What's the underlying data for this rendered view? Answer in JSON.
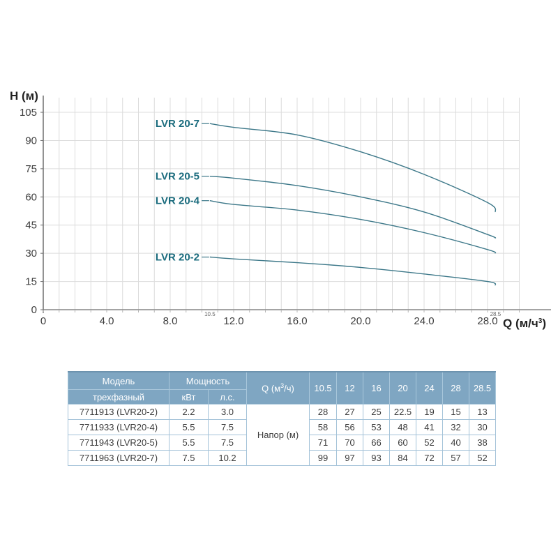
{
  "chart": {
    "y_axis_label": "H (м)",
    "x_axis_label_prefix": "Q (м/ч",
    "x_axis_label_sup": "3",
    "x_axis_label_suffix": ")",
    "x_ticks": [
      {
        "label": "0",
        "value": 0
      },
      {
        "label": "4.0",
        "value": 4
      },
      {
        "label": "8.0",
        "value": 8
      },
      {
        "label": "12.0",
        "value": 12
      },
      {
        "label": "16.0",
        "value": 16
      },
      {
        "label": "20.0",
        "value": 20
      },
      {
        "label": "24.0",
        "value": 24
      },
      {
        "label": "28.0",
        "value": 28
      }
    ],
    "y_ticks": [
      {
        "label": "0",
        "value": 0
      },
      {
        "label": "15",
        "value": 15
      },
      {
        "label": "30",
        "value": 30
      },
      {
        "label": "45",
        "value": 45
      },
      {
        "label": "60",
        "value": 60
      },
      {
        "label": "75",
        "value": 75
      },
      {
        "label": "90",
        "value": 90
      },
      {
        "label": "105",
        "value": 105
      }
    ],
    "range_markers": [
      {
        "label": "10.5",
        "value": 10.5
      },
      {
        "label": "28.5",
        "value": 28.5
      }
    ],
    "colors": {
      "curve": "#3d7889",
      "curve_label": "#1a6b7d",
      "grid": "#dcdcdc",
      "axis": "#6e6e6e",
      "tick_text": "#3d3d3d",
      "marker_text": "#666666",
      "axis_title": "#222222"
    }
  },
  "chart_data": {
    "type": "line",
    "title": "",
    "xlabel": "Q (м/ч³)",
    "ylabel": "H (м)",
    "xlim": [
      0,
      30
    ],
    "ylim": [
      0,
      112
    ],
    "grid": true,
    "legend_position": "inline-left-of-curves",
    "x": [
      10.5,
      12,
      16,
      20,
      24,
      28,
      28.5
    ],
    "series": [
      {
        "name": "LVR 20-7",
        "values": [
          99,
          97,
          93,
          84,
          72,
          57,
          52
        ]
      },
      {
        "name": "LVR 20-5",
        "values": [
          71,
          70,
          66,
          60,
          52,
          40,
          38
        ]
      },
      {
        "name": "LVR 20-4",
        "values": [
          58,
          56,
          53,
          48,
          41,
          32,
          30
        ]
      },
      {
        "name": "LVR 20-2",
        "values": [
          28,
          27,
          25,
          22.5,
          19,
          15,
          13
        ]
      }
    ]
  },
  "table": {
    "header": {
      "model": "Модель",
      "power": "Мощность",
      "phase": "трехфазный",
      "kw": "кВт",
      "hp": "л.с.",
      "q_prefix": "Q (м",
      "q_sup": "3",
      "q_suffix": "/ч)",
      "q_columns": [
        "10.5",
        "12",
        "16",
        "20",
        "24",
        "28",
        "28.5"
      ],
      "napor": "Напор (м)"
    },
    "rows": [
      {
        "model": "7711913 (LVR20-2)",
        "kw": "2.2",
        "hp": "3.0",
        "values": [
          "28",
          "27",
          "25",
          "22.5",
          "19",
          "15",
          "13"
        ]
      },
      {
        "model": "7711933 (LVR20-4)",
        "kw": "5.5",
        "hp": "7.5",
        "values": [
          "58",
          "56",
          "53",
          "48",
          "41",
          "32",
          "30"
        ]
      },
      {
        "model": "7711943 (LVR20-5)",
        "kw": "5.5",
        "hp": "7.5",
        "values": [
          "71",
          "70",
          "66",
          "60",
          "52",
          "40",
          "38"
        ]
      },
      {
        "model": "7711963 (LVR20-7)",
        "kw": "7.5",
        "hp": "10.2",
        "values": [
          "99",
          "97",
          "93",
          "84",
          "72",
          "57",
          "52"
        ]
      }
    ],
    "colors": {
      "header_bg": "#7fa6c2",
      "header_text": "#ffffff",
      "border": "#a3c2d8",
      "body_text": "#3c3c3c"
    }
  }
}
